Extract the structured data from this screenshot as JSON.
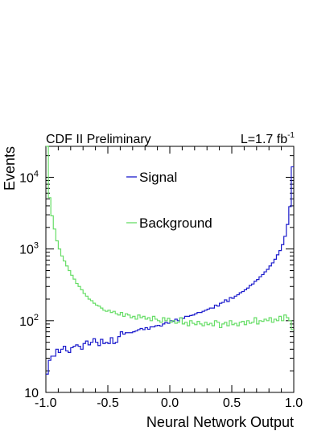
{
  "chart_data": {
    "type": "line",
    "style": "step histogram",
    "header_left": "CDF II Preliminary",
    "header_right_prefix": "L=1.7 fb",
    "header_right_sup": "-1",
    "xlabel": "Neural Network Output",
    "ylabel": "Events",
    "xlim": [
      -1.0,
      1.0
    ],
    "ylim": [
      10,
      27000
    ],
    "yscale": "log",
    "x_ticks": [
      "-1.0",
      "-0.5",
      "0.0",
      "0.5",
      "1.0"
    ],
    "x_tick_values": [
      -1.0,
      -0.5,
      0.0,
      0.5,
      1.0
    ],
    "y_ticks": [
      {
        "value": 10,
        "base": "10",
        "exp": ""
      },
      {
        "value": 100,
        "base": "10",
        "exp": "2"
      },
      {
        "value": 1000,
        "base": "10",
        "exp": "3"
      },
      {
        "value": 10000,
        "base": "10",
        "exp": "4"
      }
    ],
    "bin_width": 0.02,
    "x_start": -1.0,
    "series": [
      {
        "name": "Signal",
        "color": "#1a1acc",
        "values": [
          18,
          28,
          32,
          32,
          40,
          36,
          40,
          44,
          38,
          36,
          42,
          44,
          46,
          44,
          40,
          48,
          52,
          46,
          50,
          56,
          50,
          45,
          55,
          48,
          50,
          48,
          58,
          48,
          50,
          60,
          70,
          65,
          68,
          68,
          68,
          70,
          72,
          75,
          78,
          75,
          80,
          76,
          82,
          82,
          85,
          86,
          84,
          90,
          95,
          92,
          100,
          98,
          105,
          100,
          110,
          108,
          115,
          115,
          118,
          120,
          125,
          130,
          130,
          135,
          140,
          145,
          150,
          150,
          165,
          160,
          175,
          180,
          195,
          185,
          210,
          205,
          220,
          230,
          245,
          255,
          270,
          285,
          310,
          325,
          355,
          375,
          410,
          440,
          480,
          520,
          580,
          640,
          720,
          830,
          950,
          1150,
          1500,
          2200,
          3900,
          14000
        ]
      },
      {
        "name": "Background",
        "color": "#66dd66",
        "values": [
          27000,
          5200,
          2900,
          1900,
          1300,
          1000,
          800,
          680,
          580,
          500,
          430,
          380,
          330,
          300,
          270,
          240,
          220,
          200,
          190,
          175,
          165,
          160,
          150,
          140,
          135,
          140,
          130,
          135,
          125,
          120,
          130,
          115,
          125,
          120,
          110,
          115,
          105,
          120,
          110,
          115,
          105,
          110,
          100,
          115,
          105,
          100,
          95,
          110,
          100,
          108,
          95,
          100,
          92,
          95,
          110,
          90,
          95,
          85,
          100,
          92,
          88,
          98,
          90,
          85,
          95,
          88,
          92,
          85,
          100,
          95,
          80,
          90,
          95,
          85,
          100,
          88,
          92,
          85,
          95,
          98,
          88,
          100,
          92,
          95,
          110,
          90,
          100,
          98,
          105,
          100,
          110,
          95,
          105,
          100,
          115,
          100,
          120,
          110,
          100,
          75
        ]
      }
    ]
  }
}
